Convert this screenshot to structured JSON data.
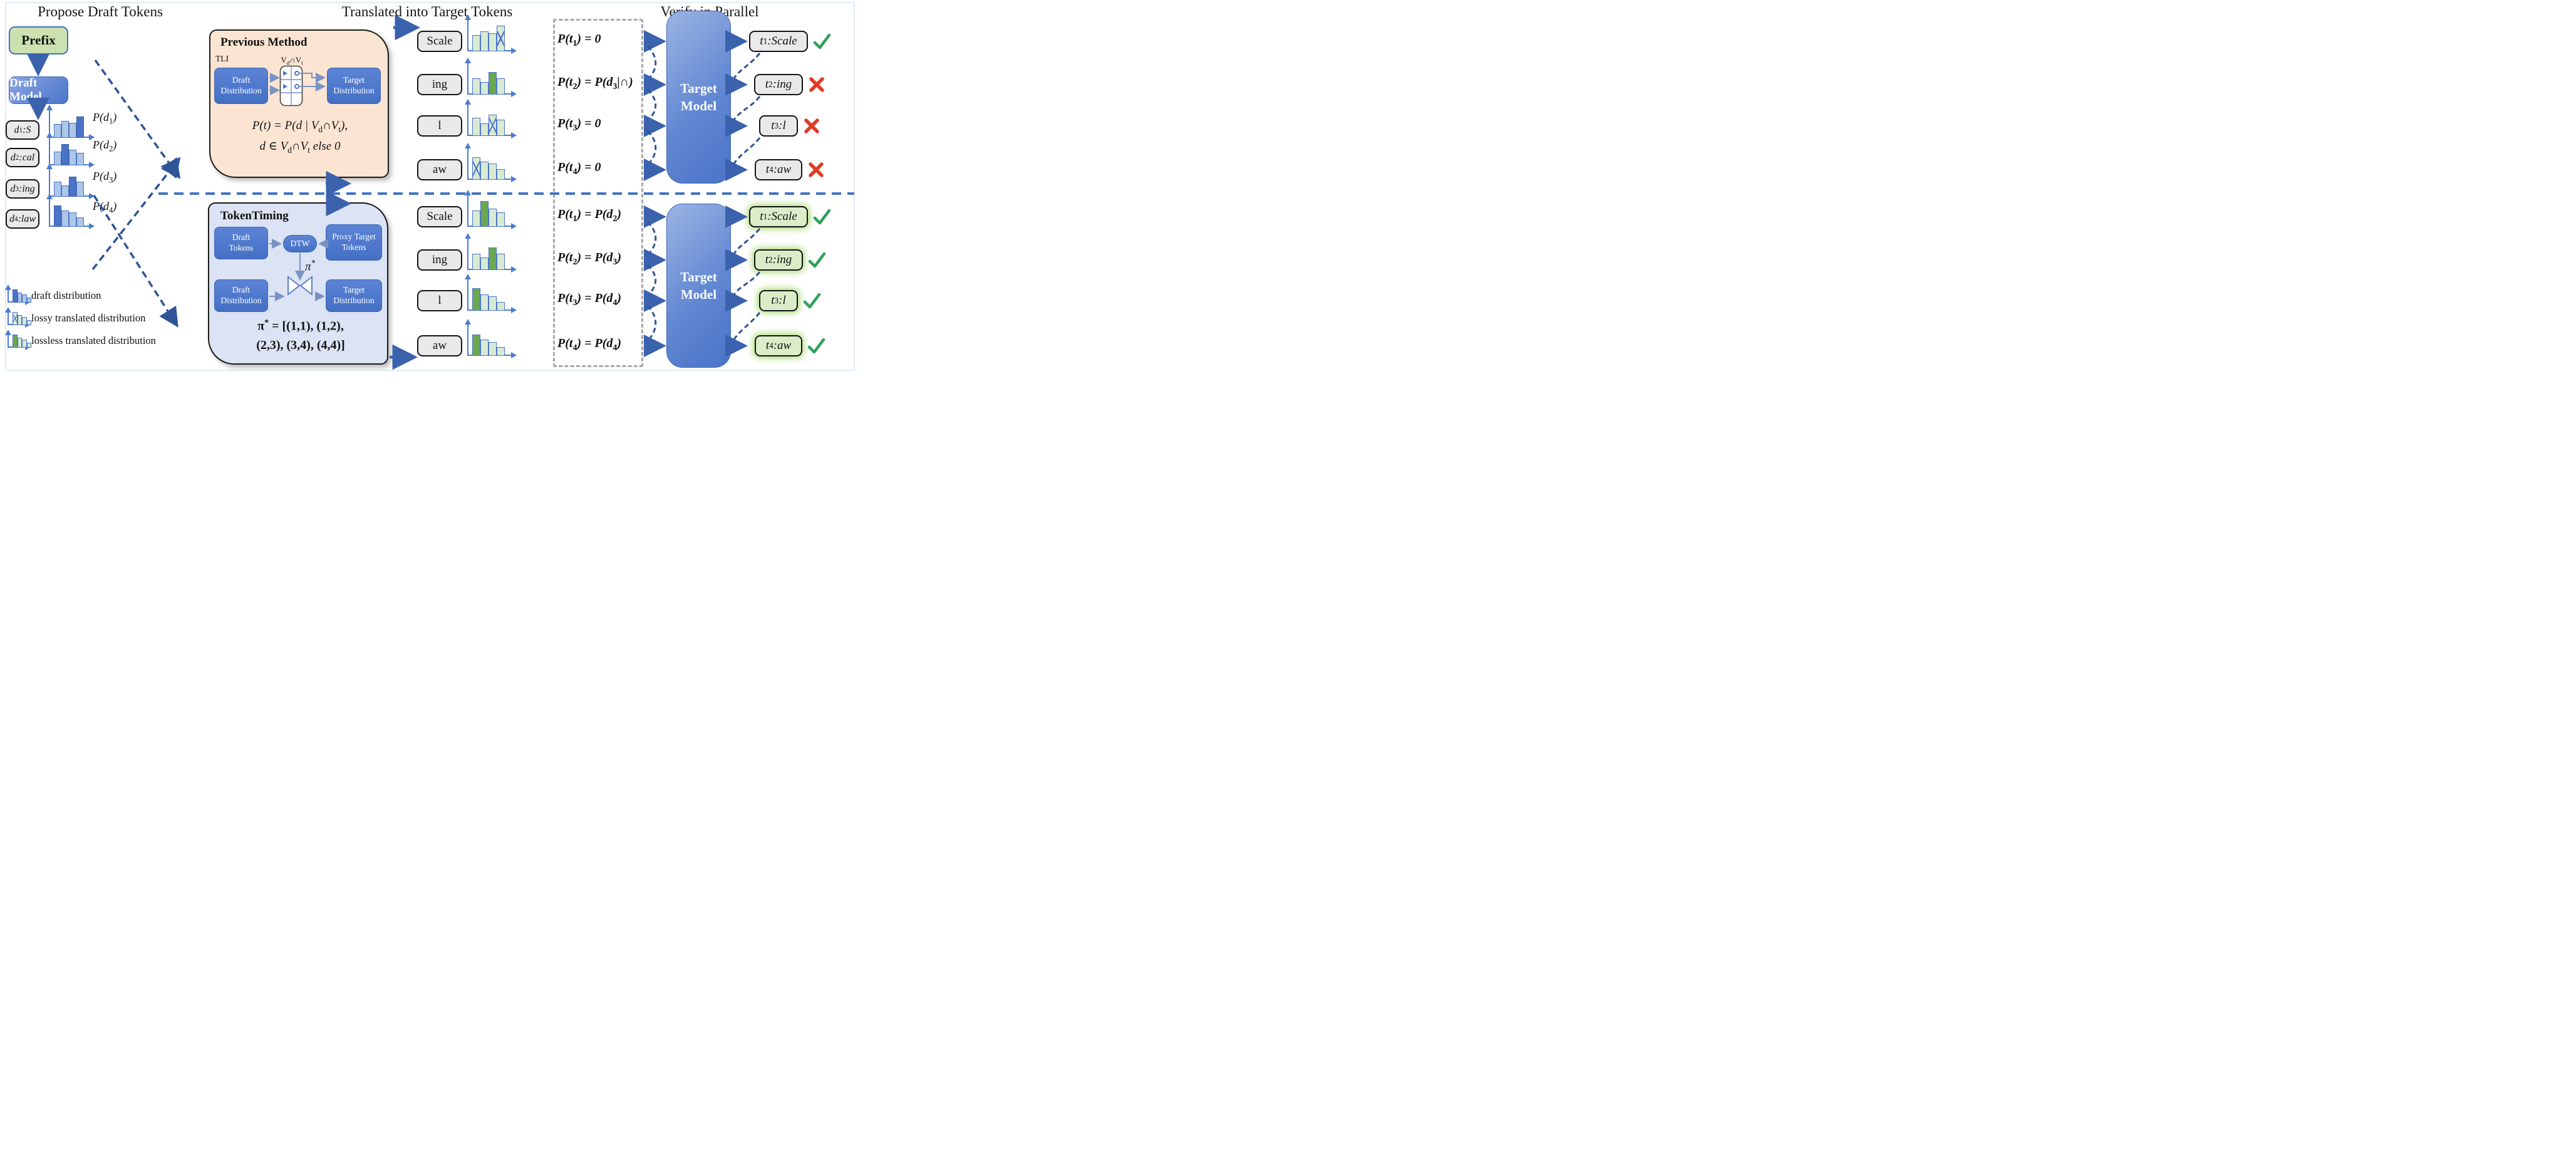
{
  "titles": {
    "left": "Propose Draft Tokens",
    "middle": "Translated into Target Tokens",
    "right": "Verify in Parallel"
  },
  "colors": {
    "accent_blue": "#4472c4",
    "dashed_blue": "#2f5597",
    "peach_panel": "#fbe5d2",
    "lavender_panel": "#dbe3f4",
    "prefix_green": "#cbe2b0",
    "token_gray": "#e9e9e9",
    "verified_green": "#daecc8",
    "bar_light_blue": "#adc6e8",
    "bar_dark_blue": "#4a74c8",
    "bar_light_green": "#d9ead3",
    "bar_dark_green": "#6aa84f",
    "check_green": "#2fa05a",
    "cross_red": "#e03b24",
    "gray_dash_box": "#a8a8a8"
  },
  "left_panel": {
    "prefix": "Prefix",
    "draft_model": "Draft Model",
    "draft_tokens": [
      {
        "label": "d_{1}:S",
        "plabel": "P(d_{1})"
      },
      {
        "label": "d_{2}:cal",
        "plabel": "P(d_{2})"
      },
      {
        "label": "d_{3}:ing",
        "plabel": "P(d_{3})"
      },
      {
        "label": "d_{4}:law",
        "plabel": "P(d_{4})"
      }
    ],
    "legend": [
      {
        "type": "draft",
        "label": "draft distribution"
      },
      {
        "type": "lossy",
        "label": "lossy translated distribution"
      },
      {
        "type": "lossless",
        "label": "lossless translated distribution"
      }
    ]
  },
  "previous_method": {
    "title": "Previous Method",
    "tag": "TLI",
    "vocab_label": "V_{d}∩V_{t}",
    "draft_box": "Draft Distribution",
    "target_box": "Target Distribution",
    "formula_line1": "P(t) = P(d | V_{d}∩V_{t}),",
    "formula_line2": "d ∈ V_{d}∩V_{t} else  0"
  },
  "token_timing": {
    "title": "TokenTiming",
    "draft_tokens_box": "Draft Tokens",
    "dtw": "DTW",
    "proxy_box": "Proxy Target Tokens",
    "pi_label": "π^{*}",
    "draft_dist_box": "Draft Distribution",
    "target_dist_box": "Target Distribution",
    "formula_line1": "π^{*} = [(1,1), (1,2),",
    "formula_line2": "(2,3), (3,4), (4,4)]"
  },
  "top_flow": {
    "model": "Target Model",
    "tokens": [
      "Scale",
      "ing",
      "l",
      "aw"
    ],
    "formulas": [
      "P(t_{1}) = 0",
      "P(t_{2}) = P(d_{3}|∩)",
      "P(t_{3}) = 0",
      "P(t_{4}) = 0"
    ],
    "verify": [
      {
        "label": "t_{1}:Scale",
        "mark": "check"
      },
      {
        "label": "t_{2}:ing",
        "mark": "cross"
      },
      {
        "label": "t_{3}:l",
        "mark": "cross"
      },
      {
        "label": "t_{4}:aw",
        "mark": "cross"
      }
    ]
  },
  "bottom_flow": {
    "model": "Target Model",
    "tokens": [
      "Scale",
      "ing",
      "l",
      "aw"
    ],
    "formulas": [
      "P(t_{1}) = P(d_{2})",
      "P(t_{2}) = P(d_{3})",
      "P(t_{3}) = P(d_{4})",
      "P(t_{4}) = P(d_{4})"
    ],
    "verify": [
      {
        "label": "t_{1}:Scale",
        "mark": "check"
      },
      {
        "label": "t_{2}:ing",
        "mark": "check"
      },
      {
        "label": "t_{3}:l",
        "mark": "check"
      },
      {
        "label": "t_{4}:aw",
        "mark": "check"
      }
    ]
  },
  "chart_data": [
    {
      "type": "bar",
      "name": "P(d1) draft distribution",
      "values": [
        0.6,
        0.75,
        0.66,
        0.95
      ],
      "highlight_index": 3,
      "highlight": "dark-blue"
    },
    {
      "type": "bar",
      "name": "P(d2) draft distribution",
      "values": [
        0.6,
        0.95,
        0.7,
        0.55
      ],
      "highlight_index": 1,
      "highlight": "dark-blue"
    },
    {
      "type": "bar",
      "name": "P(d3) draft distribution",
      "values": [
        0.66,
        0.5,
        0.9,
        0.66
      ],
      "highlight_index": 2,
      "highlight": "dark-blue"
    },
    {
      "type": "bar",
      "name": "P(d4) draft distribution",
      "values": [
        0.95,
        0.72,
        0.64,
        0.42
      ],
      "highlight_index": 0,
      "highlight": "dark-blue"
    },
    {
      "type": "bar",
      "name": "Scale lossy translated",
      "values": [
        0.62,
        0.76,
        0.69,
        0.97
      ],
      "highlight_index": 3,
      "highlight": "hatched"
    },
    {
      "type": "bar",
      "name": "ing lossless translated",
      "values": [
        0.62,
        0.47,
        0.86,
        0.62
      ],
      "highlight_index": 2,
      "highlight": "dark-green"
    },
    {
      "type": "bar",
      "name": "l lossy translated",
      "values": [
        0.69,
        0.47,
        0.81,
        0.62
      ],
      "highlight_index": 2,
      "highlight": "hatched"
    },
    {
      "type": "bar",
      "name": "aw lossy translated",
      "values": [
        0.86,
        0.69,
        0.62,
        0.4
      ],
      "highlight_index": 0,
      "highlight": "hatched"
    },
    {
      "type": "bar",
      "name": "Scale lossless translated",
      "values": [
        0.62,
        0.97,
        0.69,
        0.55
      ],
      "highlight_index": 1,
      "highlight": "dark-green"
    },
    {
      "type": "bar",
      "name": "ing lossless translated (bottom)",
      "values": [
        0.62,
        0.47,
        0.86,
        0.62
      ],
      "highlight_index": 2,
      "highlight": "dark-green"
    },
    {
      "type": "bar",
      "name": "l lossless translated",
      "values": [
        0.86,
        0.62,
        0.55,
        0.33
      ],
      "highlight_index": 0,
      "highlight": "dark-green"
    },
    {
      "type": "bar",
      "name": "aw lossless translated",
      "values": [
        0.81,
        0.62,
        0.52,
        0.33
      ],
      "highlight_index": 0,
      "highlight": "dark-green"
    },
    {
      "type": "bar",
      "name": "legend draft",
      "values": [
        0.95,
        0.72,
        0.6,
        0.36
      ],
      "highlight_index": 0,
      "highlight": "dark-blue"
    },
    {
      "type": "bar",
      "name": "legend lossy",
      "values": [
        0.95,
        0.72,
        0.6,
        0.36
      ],
      "highlight_index": 0,
      "highlight": "hatched"
    },
    {
      "type": "bar",
      "name": "legend lossless",
      "values": [
        0.95,
        0.72,
        0.6,
        0.36
      ],
      "highlight_index": 0,
      "highlight": "dark-green"
    }
  ]
}
